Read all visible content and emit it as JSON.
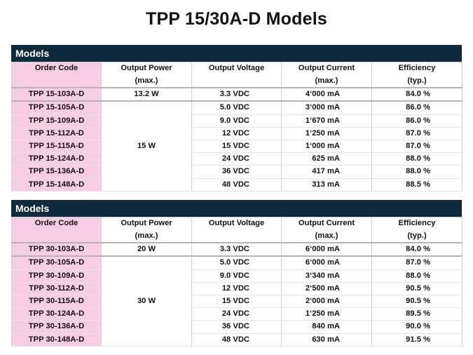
{
  "title": "TPP 15/30A-D Models",
  "headers": {
    "order_code": "Order Code",
    "output_power": "Output Power",
    "output_power_sub": "(max.)",
    "output_voltage": "Output Voltage",
    "output_current": "Output Current",
    "output_current_sub": "(max.)",
    "efficiency": "Efficiency",
    "efficiency_sub": "(typ.)"
  },
  "tables": [
    {
      "label": "Models",
      "first_row": {
        "code": "TPP 15-103A-D",
        "power": "13.2 W",
        "voltage": "3.3 VDC",
        "current": "4‘000 mA",
        "efficiency": "84.0 %"
      },
      "group_power": "15 W",
      "rows": [
        {
          "code": "TPP 15-105A-D",
          "voltage": "5.0 VDC",
          "current": "3‘000 mA",
          "efficiency": "86.0 %"
        },
        {
          "code": "TPP 15-109A-D",
          "voltage": "9.0 VDC",
          "current": "1‘670 mA",
          "efficiency": "86.0 %"
        },
        {
          "code": "TPP 15-112A-D",
          "voltage": "12 VDC",
          "current": "1‘250 mA",
          "efficiency": "87.0 %"
        },
        {
          "code": "TPP 15-115A-D",
          "voltage": "15 VDC",
          "current": "1‘000 mA",
          "efficiency": "87.0 %"
        },
        {
          "code": "TPP 15-124A-D",
          "voltage": "24 VDC",
          "current": "625 mA",
          "efficiency": "88.0 %"
        },
        {
          "code": "TPP 15-136A-D",
          "voltage": "36 VDC",
          "current": "417 mA",
          "efficiency": "88.0 %"
        },
        {
          "code": "TPP 15-148A-D",
          "voltage": "48 VDC",
          "current": "313 mA",
          "efficiency": "88.5 %"
        }
      ]
    },
    {
      "label": "Models",
      "first_row": {
        "code": "TPP 30-103A-D",
        "power": "20 W",
        "voltage": "3.3 VDC",
        "current": "6‘000 mA",
        "efficiency": "84.0 %"
      },
      "group_power": "30 W",
      "rows": [
        {
          "code": "TPP 30-105A-D",
          "voltage": "5.0 VDC",
          "current": "6‘000 mA",
          "efficiency": "87.0 %"
        },
        {
          "code": "TPP 30-109A-D",
          "voltage": "9.0 VDC",
          "current": "3‘340 mA",
          "efficiency": "88.0 %"
        },
        {
          "code": "TPP 30-112A-D",
          "voltage": "12 VDC",
          "current": "2‘500 mA",
          "efficiency": "90.5 %"
        },
        {
          "code": "TPP 30-115A-D",
          "voltage": "15 VDC",
          "current": "2‘000 mA",
          "efficiency": "90.5 %"
        },
        {
          "code": "TPP 30-124A-D",
          "voltage": "24 VDC",
          "current": "1‘250 mA",
          "efficiency": "89.5 %"
        },
        {
          "code": "TPP 30-136A-D",
          "voltage": "36 VDC",
          "current": "840 mA",
          "efficiency": "90.0 %"
        },
        {
          "code": "TPP 30-148A-D",
          "voltage": "48 VDC",
          "current": "630 mA",
          "efficiency": "91.5 %"
        }
      ]
    }
  ]
}
